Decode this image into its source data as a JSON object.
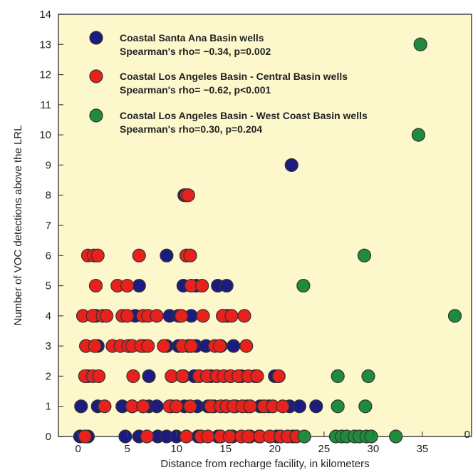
{
  "chart_data": {
    "type": "scatter",
    "xlabel": "Distance from recharge facility, in kilometers",
    "ylabel": "Number of VOC detections above the LRL",
    "xlim": [
      -2,
      40
    ],
    "ylim": [
      0,
      14
    ],
    "xticks": [
      "0",
      "5",
      "10",
      "15",
      "20",
      "25",
      "30",
      "35"
    ],
    "xtick_values": [
      0,
      5,
      10,
      15,
      20,
      25,
      30,
      35
    ],
    "yticks": [
      "0",
      "1",
      "2",
      "3",
      "4",
      "5",
      "6",
      "7",
      "8",
      "9",
      "10",
      "11",
      "12",
      "13",
      "14"
    ],
    "yvalues_ticks": [
      0,
      1,
      2,
      3,
      4,
      5,
      6,
      7,
      8,
      9,
      10,
      11,
      12,
      13,
      14
    ],
    "edge_label": "0",
    "grid": false,
    "legend_placement": "top-left",
    "background": "#fdf8cc",
    "series": [
      {
        "name": "Coastal Santa Ana Basin wells",
        "stat_line": "Spearman's rho= −0.34, p=0.002",
        "color": "#1c1c80",
        "points": [
          [
            0.2,
            0
          ],
          [
            1.0,
            0
          ],
          [
            4.8,
            0
          ],
          [
            6.2,
            0
          ],
          [
            8.1,
            0
          ],
          [
            9.0,
            0
          ],
          [
            10.0,
            0
          ],
          [
            12.2,
            0
          ],
          [
            14.2,
            0
          ],
          [
            15.7,
            0
          ],
          [
            17.5,
            0
          ],
          [
            18.4,
            0
          ],
          [
            20.2,
            0
          ],
          [
            21.8,
            0
          ],
          [
            0.3,
            1
          ],
          [
            2.0,
            1
          ],
          [
            4.5,
            1
          ],
          [
            5.5,
            1
          ],
          [
            6.6,
            1
          ],
          [
            7.2,
            1
          ],
          [
            8.0,
            1
          ],
          [
            9.5,
            1
          ],
          [
            10.8,
            1
          ],
          [
            12.1,
            1
          ],
          [
            13.2,
            1
          ],
          [
            13.8,
            1
          ],
          [
            15.0,
            1
          ],
          [
            16.0,
            1
          ],
          [
            17.2,
            1
          ],
          [
            18.5,
            1
          ],
          [
            19.4,
            1
          ],
          [
            21.5,
            1
          ],
          [
            22.5,
            1
          ],
          [
            24.2,
            1
          ],
          [
            1.0,
            2
          ],
          [
            7.2,
            2
          ],
          [
            10.7,
            2
          ],
          [
            11.8,
            2
          ],
          [
            13.5,
            2
          ],
          [
            14.1,
            2
          ],
          [
            15.5,
            2
          ],
          [
            16.6,
            2
          ],
          [
            18.0,
            2
          ],
          [
            20.0,
            2
          ],
          [
            0.8,
            3
          ],
          [
            2.0,
            3
          ],
          [
            5.2,
            3
          ],
          [
            6.7,
            3
          ],
          [
            9.0,
            3
          ],
          [
            10.2,
            3
          ],
          [
            11.2,
            3
          ],
          [
            12.0,
            3
          ],
          [
            13.0,
            3
          ],
          [
            14.5,
            3
          ],
          [
            15.8,
            3
          ],
          [
            1.8,
            4
          ],
          [
            5.8,
            4
          ],
          [
            9.3,
            4
          ],
          [
            10.2,
            4
          ],
          [
            11.5,
            4
          ],
          [
            14.8,
            4
          ],
          [
            15.2,
            4
          ],
          [
            6.2,
            5
          ],
          [
            10.7,
            5
          ],
          [
            12.0,
            5
          ],
          [
            14.2,
            5
          ],
          [
            15.1,
            5
          ],
          [
            9.0,
            6
          ],
          [
            10.8,
            8
          ],
          [
            21.7,
            9
          ]
        ]
      },
      {
        "name": "Coastal Los Angeles Basin - Central Basin wells",
        "stat_line": "Spearman's rho= −0.62, p<0.001",
        "color": "#e8211c",
        "points": [
          [
            0.7,
            0
          ],
          [
            7.0,
            0
          ],
          [
            11.0,
            0
          ],
          [
            12.5,
            0
          ],
          [
            13.2,
            0
          ],
          [
            14.5,
            0
          ],
          [
            15.4,
            0
          ],
          [
            16.6,
            0
          ],
          [
            17.3,
            0
          ],
          [
            18.5,
            0
          ],
          [
            19.5,
            0
          ],
          [
            20.6,
            0
          ],
          [
            21.3,
            0
          ],
          [
            22.2,
            0
          ],
          [
            2.7,
            1
          ],
          [
            5.5,
            1
          ],
          [
            6.6,
            1
          ],
          [
            9.3,
            1
          ],
          [
            10.0,
            1
          ],
          [
            11.4,
            1
          ],
          [
            13.5,
            1
          ],
          [
            14.5,
            1
          ],
          [
            15.1,
            1
          ],
          [
            15.8,
            1
          ],
          [
            16.7,
            1
          ],
          [
            17.5,
            1
          ],
          [
            18.9,
            1
          ],
          [
            19.8,
            1
          ],
          [
            20.8,
            1
          ],
          [
            0.7,
            2
          ],
          [
            1.5,
            2
          ],
          [
            2.1,
            2
          ],
          [
            5.6,
            2
          ],
          [
            9.5,
            2
          ],
          [
            10.6,
            2
          ],
          [
            12.3,
            2
          ],
          [
            13.1,
            2
          ],
          [
            14.1,
            2
          ],
          [
            14.8,
            2
          ],
          [
            15.5,
            2
          ],
          [
            16.3,
            2
          ],
          [
            17.3,
            2
          ],
          [
            18.2,
            2
          ],
          [
            20.4,
            2
          ],
          [
            0.8,
            3
          ],
          [
            1.7,
            3
          ],
          [
            3.5,
            3
          ],
          [
            4.3,
            3
          ],
          [
            5.1,
            3
          ],
          [
            5.5,
            3
          ],
          [
            6.4,
            3
          ],
          [
            7.1,
            3
          ],
          [
            8.7,
            3
          ],
          [
            10.6,
            3
          ],
          [
            11.5,
            3
          ],
          [
            13.9,
            3
          ],
          [
            14.4,
            3
          ],
          [
            17.1,
            3
          ],
          [
            0.5,
            4
          ],
          [
            1.5,
            4
          ],
          [
            2.5,
            4
          ],
          [
            2.9,
            4
          ],
          [
            4.5,
            4
          ],
          [
            5.0,
            4
          ],
          [
            6.6,
            4
          ],
          [
            7.1,
            4
          ],
          [
            8.0,
            4
          ],
          [
            10.5,
            4
          ],
          [
            12.7,
            4
          ],
          [
            14.7,
            4
          ],
          [
            15.6,
            4
          ],
          [
            16.9,
            4
          ],
          [
            1.8,
            5
          ],
          [
            4.0,
            5
          ],
          [
            5.0,
            5
          ],
          [
            11.5,
            5
          ],
          [
            12.6,
            5
          ],
          [
            1.0,
            6
          ],
          [
            1.6,
            6
          ],
          [
            2.0,
            6
          ],
          [
            6.2,
            6
          ],
          [
            11.0,
            6
          ],
          [
            11.4,
            6
          ],
          [
            11.0,
            8
          ],
          [
            11.2,
            8
          ]
        ]
      },
      {
        "name": "Coastal Los Angeles Basin - West Coast Basin wells",
        "stat_line": "Spearman's rho=0.30, p=0.204",
        "color": "#1e8c3c",
        "points": [
          [
            23.0,
            0
          ],
          [
            26.2,
            0
          ],
          [
            26.8,
            0
          ],
          [
            27.3,
            0
          ],
          [
            28.1,
            0
          ],
          [
            28.6,
            0
          ],
          [
            29.3,
            0
          ],
          [
            29.8,
            0
          ],
          [
            32.3,
            0
          ],
          [
            26.4,
            1
          ],
          [
            29.2,
            1
          ],
          [
            26.4,
            2
          ],
          [
            29.5,
            2
          ],
          [
            38.3,
            4
          ],
          [
            22.9,
            5
          ],
          [
            29.1,
            6
          ],
          [
            34.6,
            10
          ],
          [
            34.8,
            13
          ]
        ]
      }
    ]
  }
}
